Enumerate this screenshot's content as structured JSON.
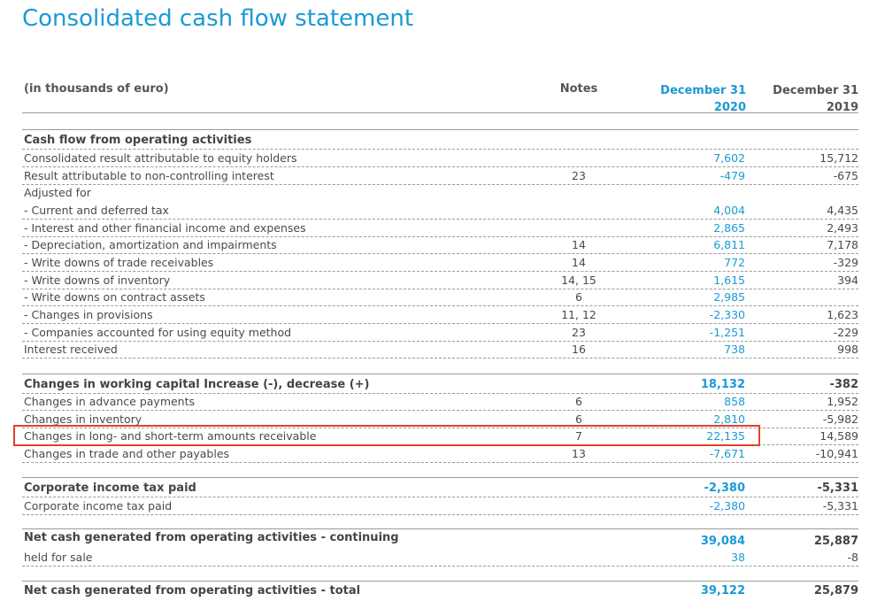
{
  "title": "Consolidated cash flow statement",
  "header": {
    "unit_label": "(in thousands of euro)",
    "notes": "Notes",
    "col2020_line1": "December 31",
    "col2020_line2": "2020",
    "col2019_line1": "December 31",
    "col2019_line2": "2019"
  },
  "colors": {
    "accent": "#1a9ad6",
    "highlight": "#e3412b"
  },
  "rows": [
    {
      "label": "Cash flow from operating activities",
      "note": "",
      "v2020": "",
      "v2019": ""
    },
    {
      "label": "Consolidated result attributable to equity holders",
      "note": "",
      "v2020": "7,602",
      "v2019": "15,712"
    },
    {
      "label": "Result attributable to non-controlling interest",
      "note": "23",
      "v2020": "-479",
      "v2019": "-675"
    },
    {
      "label": "Adjusted for",
      "note": "",
      "v2020": "",
      "v2019": ""
    },
    {
      "label": "- Current and deferred tax",
      "note": "",
      "v2020": "4,004",
      "v2019": "4,435"
    },
    {
      "label": "- Interest and other financial income and expenses",
      "note": "",
      "v2020": "2,865",
      "v2019": "2,493"
    },
    {
      "label": "- Depreciation, amortization and impairments",
      "note": "14",
      "v2020": "6,811",
      "v2019": "7,178"
    },
    {
      "label": "- Write downs of trade receivables",
      "note": "14",
      "v2020": "772",
      "v2019": "-329"
    },
    {
      "label": "- Write downs of inventory",
      "note": "14, 15",
      "v2020": "1,615",
      "v2019": "394"
    },
    {
      "label": "- Write downs on contract assets",
      "note": "6",
      "v2020": "2,985",
      "v2019": ""
    },
    {
      "label": "- Changes in provisions",
      "note": "11, 12",
      "v2020": "-2,330",
      "v2019": "1,623"
    },
    {
      "label": "- Companies accounted for using equity method",
      "note": "23",
      "v2020": "-1,251",
      "v2019": "-229"
    },
    {
      "label": "Interest received",
      "note": "16",
      "v2020": "738",
      "v2019": "998"
    },
    {
      "label": "Changes in working capital Increase (-), decrease (+)",
      "note": "",
      "v2020": "18,132",
      "v2019": "-382"
    },
    {
      "label": "Changes in advance payments",
      "note": "6",
      "v2020": "858",
      "v2019": "1,952"
    },
    {
      "label": "Changes in inventory",
      "note": "6",
      "v2020": "2,810",
      "v2019": "-5,982"
    },
    {
      "label": "Changes in long- and short-term amounts receivable",
      "note": "7",
      "v2020": "22,135",
      "v2019": "14,589"
    },
    {
      "label": "Changes in trade and other payables",
      "note": "13",
      "v2020": "-7,671",
      "v2019": "-10,941"
    },
    {
      "label": "Corporate income tax paid",
      "note": "",
      "v2020": "-2,380",
      "v2019": "-5,331"
    },
    {
      "label": "Corporate income tax paid",
      "note": "",
      "v2020": "-2,380",
      "v2019": "-5,331"
    },
    {
      "label": "Net cash generated from operating activities - continuing",
      "note": "",
      "v2020": "39,084",
      "v2019": "25,887"
    },
    {
      "label": "held for sale",
      "note": "",
      "v2020": "38",
      "v2019": "-8"
    },
    {
      "label": "Net cash generated from operating activities - total",
      "note": "",
      "v2020": "39,122",
      "v2019": "25,879"
    }
  ]
}
